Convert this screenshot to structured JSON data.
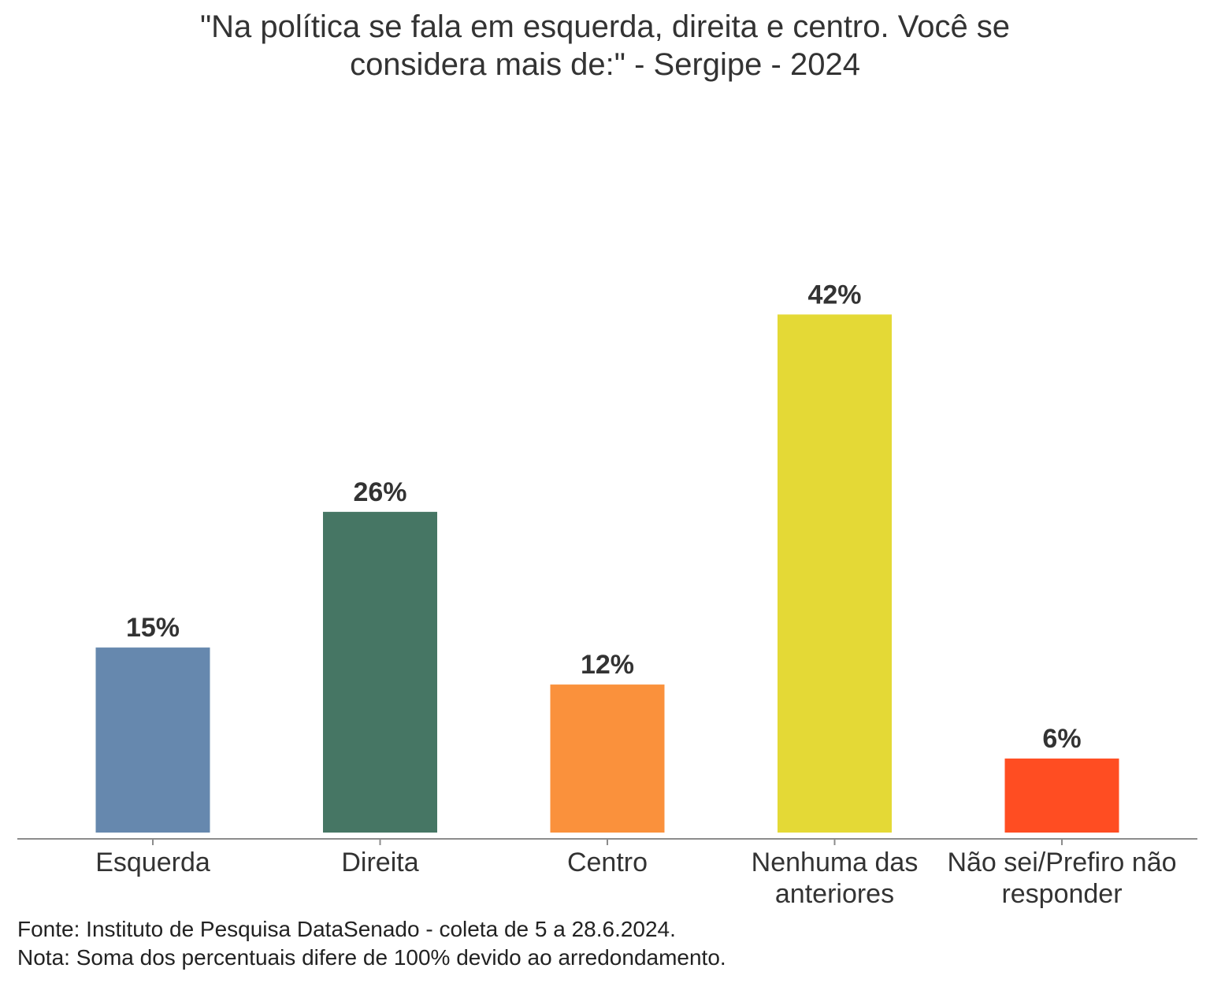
{
  "chart_data": {
    "type": "bar",
    "title_lines": [
      "\"Na política se fala em esquerda, direita e centro. Você se",
      "considera mais de:\" - Sergipe - 2024"
    ],
    "categories": [
      [
        "Esquerda"
      ],
      [
        "Direita"
      ],
      [
        "Centro"
      ],
      [
        "Nenhuma das",
        "anteriores"
      ],
      [
        "Não sei/Prefiro não",
        "responder"
      ]
    ],
    "values": [
      15,
      26,
      12,
      42,
      6
    ],
    "value_labels": [
      "15%",
      "26%",
      "12%",
      "42%",
      "6%"
    ],
    "colors": [
      "#6688AE",
      "#467664",
      "#FA913C",
      "#E4D936",
      "#FF4D22"
    ],
    "ylim": [
      0,
      100
    ],
    "unit": "%",
    "grid": false,
    "legend": "none"
  },
  "footer": {
    "source": "Fonte: Instituto de Pesquisa DataSenado - coleta de 5 a 28.6.2024.",
    "note": "Nota: Soma dos percentuais difere de 100% devido ao arredondamento."
  }
}
